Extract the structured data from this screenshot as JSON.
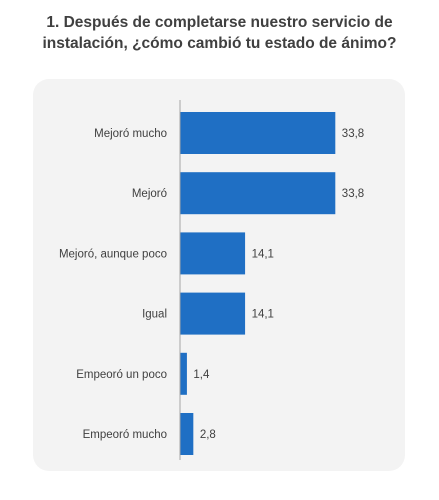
{
  "title_line1": "1. Después de completarse nuestro servicio de",
  "title_line2": "instalación, ¿cómo cambió tu estado de ánimo?",
  "colors": {
    "bar": "#1f6fc4",
    "axis": "#a6a6a6",
    "panel": "#f3f3f3",
    "text": "#404040"
  },
  "chart_data": {
    "type": "bar",
    "orientation": "horizontal",
    "categories": [
      "Mejoró mucho",
      "Mejoró",
      "Mejoró, aunque poco",
      "Igual",
      "Empeoró un poco",
      "Empeoró mucho"
    ],
    "values": [
      33.8,
      33.8,
      14.1,
      14.1,
      1.4,
      2.8
    ],
    "value_labels": [
      "33,8",
      "33,8",
      "14,1",
      "14,1",
      "1,4",
      "2,8"
    ],
    "xlim": [
      0,
      40
    ],
    "grid": false,
    "legend": "none"
  }
}
